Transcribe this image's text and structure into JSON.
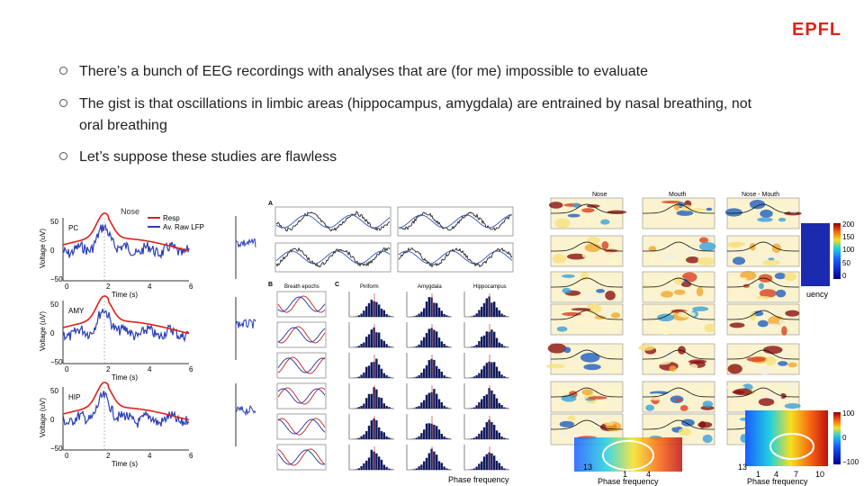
{
  "logo": "EPFL",
  "bullets": [
    "There’s a bunch of EEG recordings with analyses that are (for me) impossible to evaluate",
    "The gist is that oscillations in limbic areas (hippocampus, amygdala) are entrained by nasal breathing, not oral breathing",
    "Let’s suppose these studies are flawless"
  ],
  "figure_left": {
    "title": "Nose",
    "legend": [
      "Resp",
      "Av. Raw LFP"
    ],
    "ylabel": "Voltage (uV)",
    "xlabel": "Time (s)",
    "panels": [
      "PC",
      "AMY",
      "HIP"
    ],
    "yticks": [
      "50",
      "0",
      "−50"
    ],
    "xticks": [
      "0",
      "2",
      "4",
      "6"
    ]
  },
  "figure_middle": {
    "panel_labels": [
      "A",
      "B",
      "C"
    ],
    "cols": [
      "Breath epochs",
      "Piriform",
      "Amygdala",
      "Hippocampus"
    ],
    "xlabel": "Phase frequency"
  },
  "figure_right": {
    "cols": [
      "Nose",
      "Mouth",
      "Nose - Mouth"
    ],
    "colorbar_ticks": [
      "200",
      "150",
      "100",
      "50",
      "0"
    ],
    "colorbar2_ticks": [
      "100",
      "0",
      "−100"
    ],
    "xlabel": "Phase frequency",
    "xticks": [
      "1",
      "4",
      "7",
      "10"
    ],
    "xtick_left": "13",
    "axis_fragment": "uency"
  }
}
